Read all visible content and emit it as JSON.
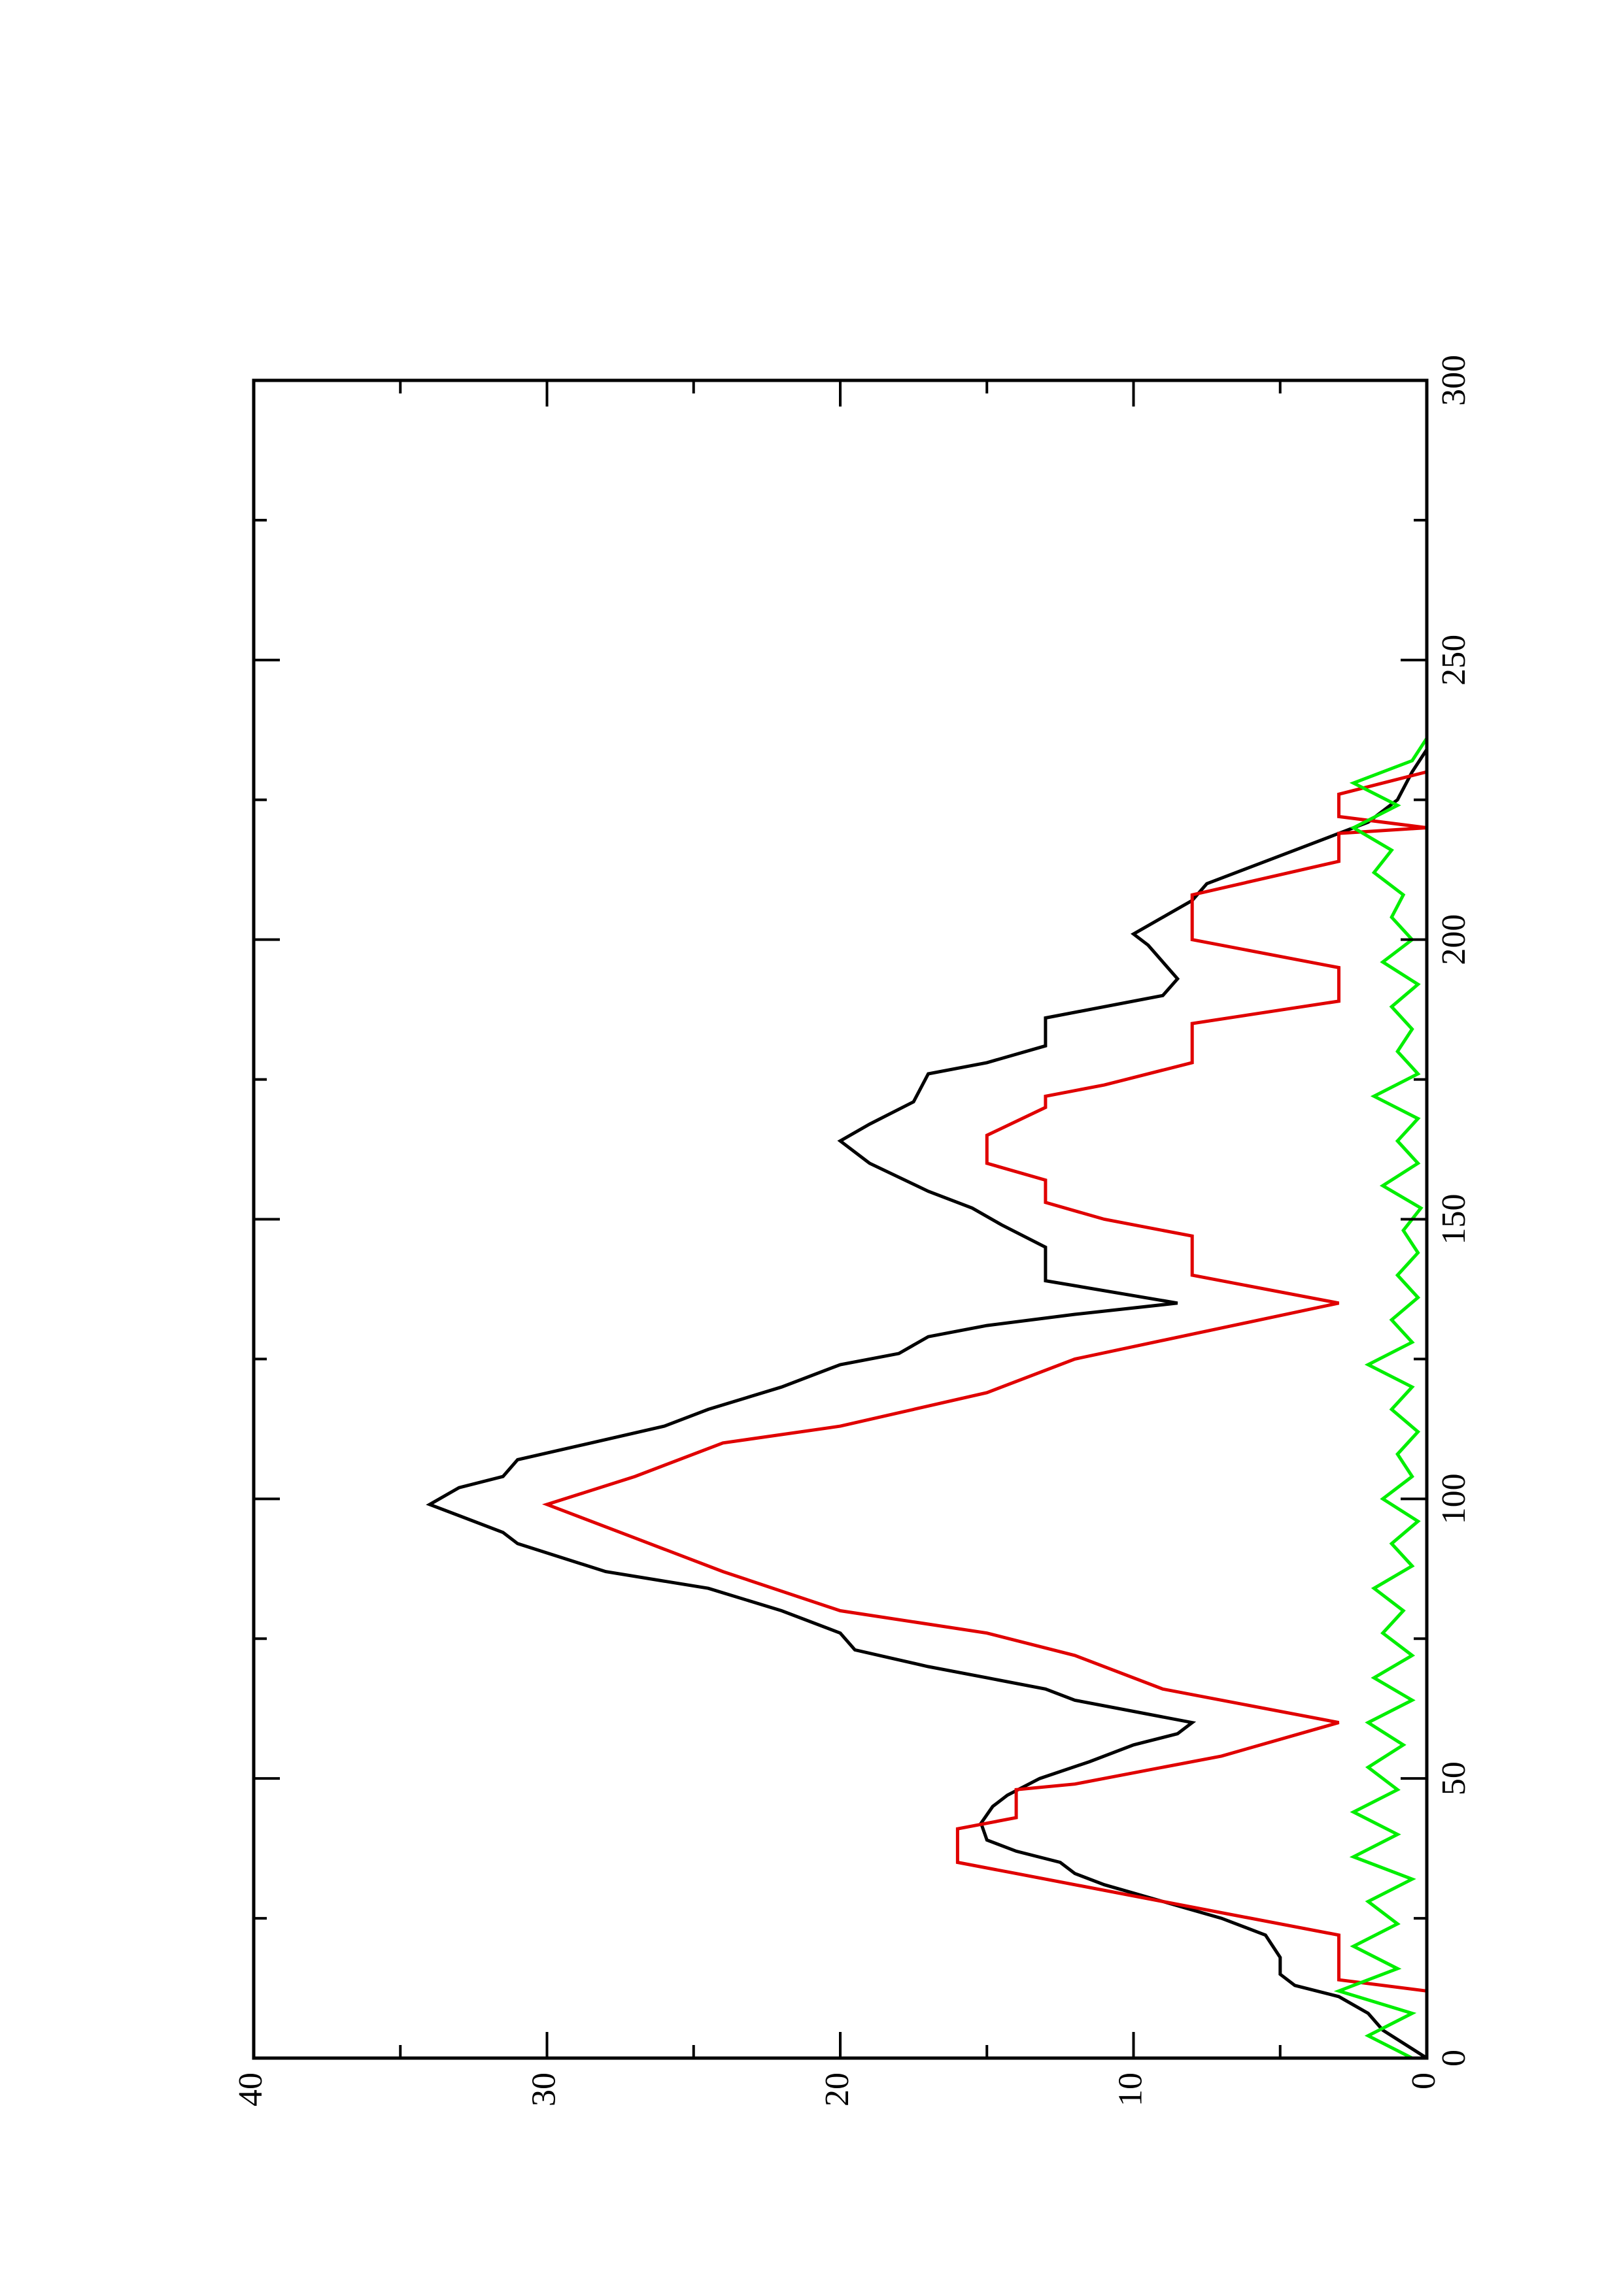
{
  "chart_data": {
    "type": "line",
    "xlim": [
      0,
      300
    ],
    "xticks": [
      0,
      50,
      100,
      150,
      200,
      250,
      300
    ],
    "xminorticks": [
      25,
      75,
      125,
      175,
      225,
      275
    ],
    "ylim": [
      0,
      40
    ],
    "yticks": [
      0,
      10,
      20,
      30,
      40
    ],
    "yminorticks": [
      5,
      15,
      25,
      35
    ],
    "series": [
      {
        "color": "#000000",
        "x": [
          0,
          5,
          8,
          11,
          13,
          15,
          18,
          22,
          25,
          28,
          31,
          33,
          35,
          37,
          39,
          42,
          45,
          47,
          50,
          53,
          56,
          58,
          60,
          62,
          64,
          66,
          68,
          70,
          73,
          76,
          80,
          84,
          87,
          92,
          94,
          97,
          99,
          102,
          104,
          107,
          110,
          113,
          116,
          120,
          124,
          126,
          129,
          131,
          133,
          135,
          139,
          145,
          149,
          152,
          155,
          160,
          164,
          167,
          171,
          176,
          178,
          181,
          186,
          190,
          193,
          196,
          199,
          201,
          204,
          207,
          210,
          213,
          216,
          219,
          221,
          225,
          230,
          234
        ],
        "values": [
          0,
          1.5,
          2,
          3,
          4.5,
          5,
          5,
          5.5,
          7,
          9,
          11,
          12,
          12.5,
          14,
          15,
          15.2,
          14.8,
          14.3,
          13.2,
          11.5,
          10,
          8.5,
          8,
          10,
          12,
          13,
          15,
          17,
          19.5,
          20,
          22,
          24.5,
          28,
          31,
          31.5,
          33,
          34,
          33,
          31.5,
          31,
          28.5,
          26,
          24.5,
          22,
          20,
          18,
          17,
          15,
          12,
          8.5,
          13,
          13,
          14.5,
          15.5,
          17,
          19,
          20,
          19,
          17.5,
          17,
          15,
          13,
          13,
          9,
          8.5,
          9,
          9.5,
          10,
          9,
          8,
          7.5,
          6,
          4.5,
          3,
          2,
          1,
          0.5,
          0
        ]
      },
      {
        "color": "#e00000",
        "x": [
          12,
          14,
          22,
          33,
          35,
          41,
          43,
          48,
          49,
          54,
          60,
          66,
          72,
          76,
          80,
          87,
          93,
          99,
          104,
          110,
          113,
          119,
          125,
          135,
          140,
          147,
          150,
          153,
          157,
          160,
          165,
          170,
          172,
          174,
          178,
          185,
          189,
          195,
          200,
          208,
          214,
          219,
          220,
          222,
          226,
          230
        ],
        "values": [
          0,
          3,
          3,
          14,
          16,
          16,
          14,
          14,
          12,
          7,
          3,
          9,
          12,
          15,
          20,
          24,
          27,
          30,
          27,
          24,
          20,
          15,
          12,
          3,
          8,
          8,
          11,
          13,
          13,
          15,
          15,
          13,
          13,
          11,
          8,
          8,
          3,
          3,
          8,
          8,
          3,
          3,
          0,
          3,
          3,
          0
        ]
      },
      {
        "color": "#00ee00",
        "x": [
          0,
          4,
          8,
          12,
          16,
          20,
          24,
          28,
          32,
          36,
          40,
          44,
          48,
          52,
          56,
          60,
          64,
          68,
          72,
          76,
          80,
          84,
          88,
          92,
          96,
          100,
          104,
          108,
          112,
          116,
          120,
          124,
          128,
          132,
          136,
          140,
          144,
          148,
          152,
          156,
          160,
          164,
          168,
          172,
          176,
          180,
          184,
          188,
          192,
          196,
          200,
          204,
          208,
          212,
          216,
          220,
          224,
          228,
          232,
          236
        ],
        "values": [
          0.5,
          2,
          0.5,
          3,
          1,
          2.5,
          1,
          2,
          0.5,
          2.5,
          1,
          2.5,
          1,
          2,
          0.8,
          2,
          0.5,
          1.8,
          0.5,
          1.5,
          0.8,
          1.8,
          0.5,
          1.2,
          0.3,
          1.5,
          0.5,
          1,
          0.3,
          1.2,
          0.5,
          2,
          0.5,
          1.2,
          0.3,
          1,
          0.3,
          0.8,
          0.2,
          1.5,
          0.3,
          1,
          0.3,
          1.8,
          0.3,
          1,
          0.5,
          1.2,
          0.3,
          1.5,
          0.5,
          1.2,
          0.8,
          1.8,
          1.2,
          2.5,
          1,
          2.5,
          0.5,
          0
        ]
      }
    ]
  }
}
